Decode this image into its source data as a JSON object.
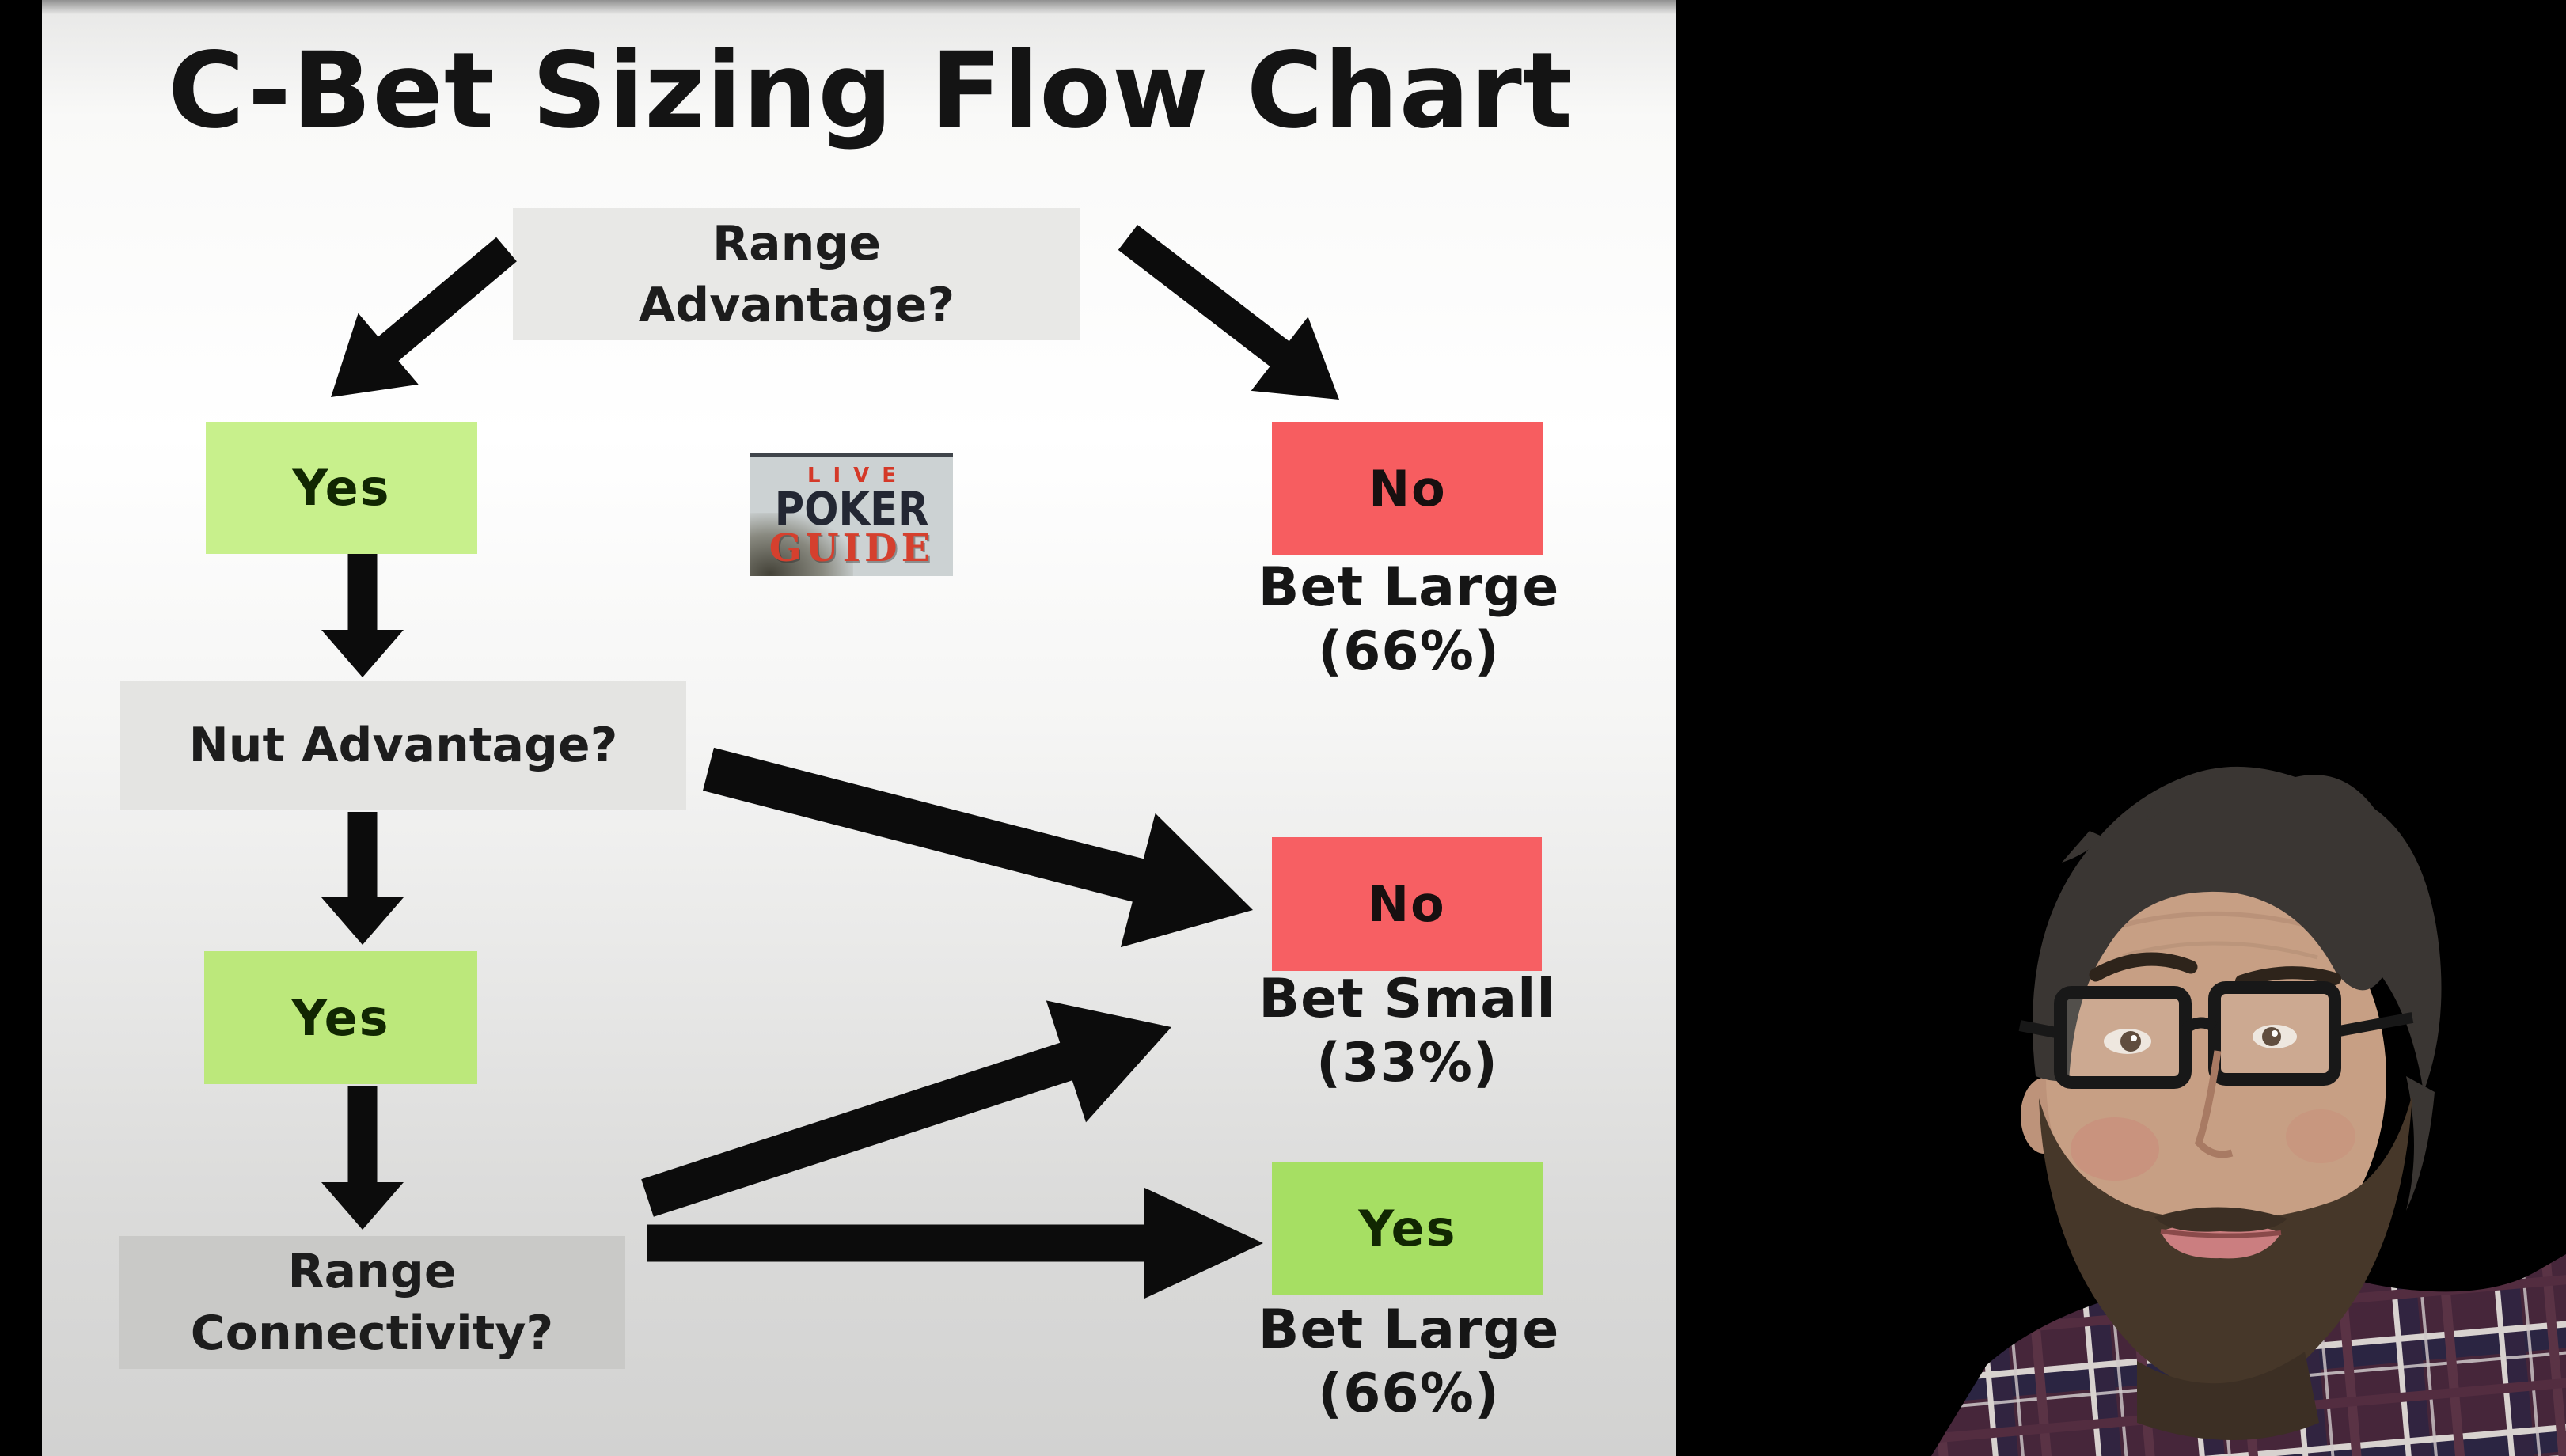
{
  "title": "C-Bet Sizing Flow Chart",
  "logo": {
    "top": "LIVE",
    "middle": "POKER",
    "bottom": "GUIDE"
  },
  "nodes": {
    "range_advantage": {
      "label": "Range Advantage?"
    },
    "nut_advantage": {
      "label": "Nut Advantage?"
    },
    "range_connectivity": {
      "label": "Range Connectivity?"
    }
  },
  "answers": {
    "yes1": {
      "label": "Yes"
    },
    "no1": {
      "label": "No"
    },
    "no2": {
      "label": "No"
    },
    "yes2": {
      "label": "Yes"
    },
    "yes3": {
      "label": "Yes"
    }
  },
  "outcomes": {
    "bet_large_top": {
      "action": "Bet Large",
      "sizing": "(66%)"
    },
    "bet_small": {
      "action": "Bet Small",
      "sizing": "(33%)"
    },
    "bet_large_bottom": {
      "action": "Bet Large",
      "sizing": "(66%)"
    }
  },
  "colors": {
    "node_gray_top": "#e8e8e6",
    "node_gray_mid": "#e4e4e2",
    "node_gray_bottom": "#c9c9c7",
    "yes_green_light": "#c8f08c",
    "yes_green_mid": "#bce87b",
    "yes_green_dark": "#a6df63",
    "no_red": "#f75d60",
    "no_red_2": "#f75f63",
    "arrow_black": "#0c0c0c",
    "logo_red": "#d43928",
    "logo_dark": "#232733"
  }
}
